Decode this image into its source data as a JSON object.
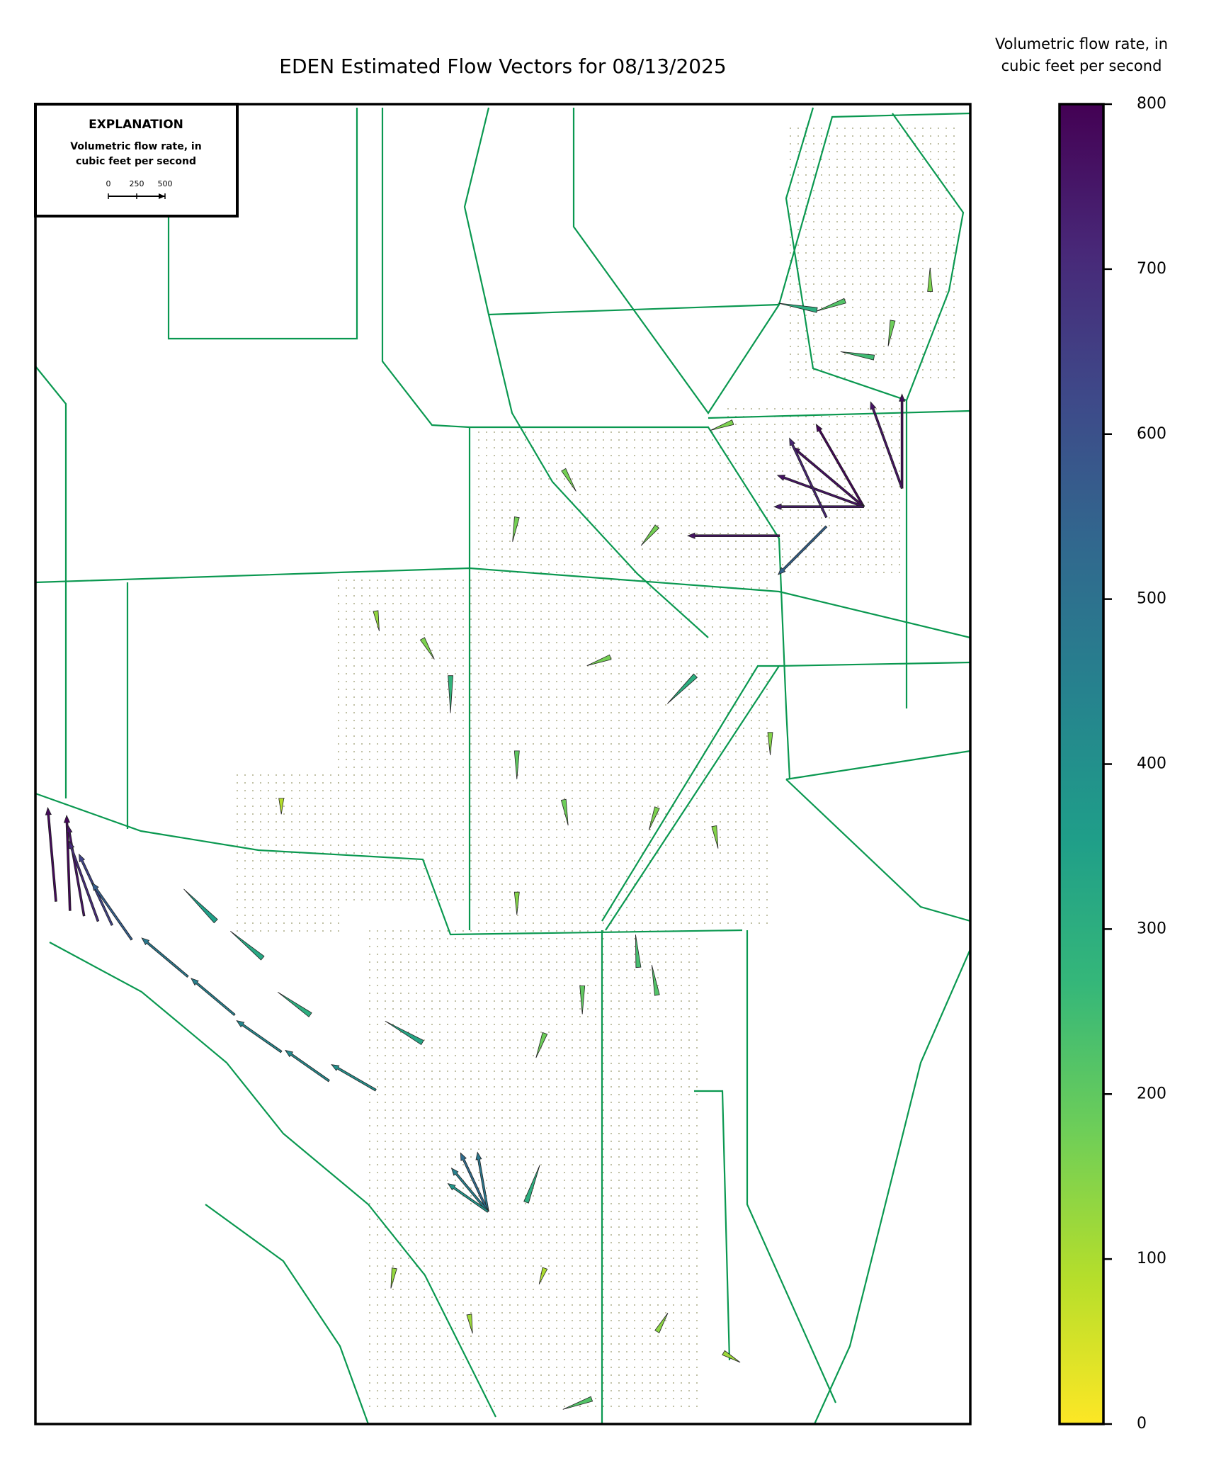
{
  "map": {
    "title": "EDEN Estimated Flow Vectors for 08/13/2025",
    "explanation": {
      "title": "EXPLANATION",
      "lines": [
        "Volumetric flow rate, in",
        "cubic feet per second"
      ],
      "scale_ticks": [
        0,
        250,
        500
      ]
    },
    "colorbar": {
      "lines": [
        "Volumetric flow rate, in",
        "cubic feet per second"
      ],
      "lim": [
        0,
        800
      ],
      "ticks": [
        0,
        100,
        200,
        300,
        400,
        500,
        600,
        700,
        800
      ],
      "colors": [
        "#fde725",
        "#b5de2b",
        "#6ece58",
        "#35b779",
        "#1f9e89",
        "#26828e",
        "#31688e",
        "#3e4989",
        "#482878",
        "#440154"
      ]
    },
    "vectors": [
      [
        0.022,
        0.604,
        95,
        780
      ],
      [
        0.037,
        0.611,
        92,
        790
      ],
      [
        0.052,
        0.615,
        100,
        760
      ],
      [
        0.067,
        0.619,
        110,
        700
      ],
      [
        0.082,
        0.622,
        115,
        640
      ],
      [
        0.103,
        0.633,
        125,
        560
      ],
      [
        0.163,
        0.661,
        140,
        480
      ],
      [
        0.213,
        0.69,
        140,
        450
      ],
      [
        0.263,
        0.718,
        145,
        430
      ],
      [
        0.314,
        0.74,
        145,
        420
      ],
      [
        0.364,
        0.747,
        150,
        400
      ],
      [
        0.414,
        0.711,
        150,
        330
      ],
      [
        0.294,
        0.69,
        145,
        300
      ],
      [
        0.243,
        0.647,
        140,
        320
      ],
      [
        0.193,
        0.619,
        135,
        350
      ],
      [
        0.484,
        0.839,
        100,
        480
      ],
      [
        0.484,
        0.839,
        115,
        520
      ],
      [
        0.484,
        0.839,
        130,
        450
      ],
      [
        0.484,
        0.839,
        145,
        380
      ],
      [
        0.525,
        0.832,
        70,
        300
      ],
      [
        0.886,
        0.305,
        120,
        790
      ],
      [
        0.886,
        0.305,
        140,
        770
      ],
      [
        0.886,
        0.305,
        160,
        760
      ],
      [
        0.886,
        0.305,
        180,
        740
      ],
      [
        0.927,
        0.291,
        90,
        780
      ],
      [
        0.927,
        0.291,
        110,
        760
      ],
      [
        0.846,
        0.313,
        115,
        720
      ],
      [
        0.796,
        0.327,
        180,
        760
      ],
      [
        0.846,
        0.32,
        225,
        550
      ],
      [
        0.706,
        0.433,
        225,
        300
      ],
      [
        0.444,
        0.433,
        270,
        280
      ],
      [
        0.515,
        0.49,
        270,
        200
      ],
      [
        0.565,
        0.527,
        280,
        180
      ],
      [
        0.665,
        0.533,
        250,
        160
      ],
      [
        0.615,
        0.419,
        200,
        170
      ],
      [
        0.414,
        0.405,
        300,
        160
      ],
      [
        0.364,
        0.384,
        280,
        130
      ],
      [
        0.263,
        0.526,
        270,
        90
      ],
      [
        0.665,
        0.675,
        100,
        220
      ],
      [
        0.645,
        0.654,
        95,
        240
      ],
      [
        0.585,
        0.668,
        270,
        200
      ],
      [
        0.545,
        0.704,
        250,
        180
      ],
      [
        0.515,
        0.597,
        270,
        150
      ],
      [
        0.565,
        0.277,
        300,
        170
      ],
      [
        0.515,
        0.313,
        260,
        170
      ],
      [
        0.665,
        0.32,
        230,
        170
      ],
      [
        0.746,
        0.241,
        200,
        160
      ],
      [
        0.866,
        0.149,
        200,
        220
      ],
      [
        0.917,
        0.164,
        260,
        180
      ],
      [
        0.957,
        0.142,
        90,
        160
      ],
      [
        0.836,
        0.156,
        170,
        300
      ],
      [
        0.897,
        0.192,
        170,
        250
      ],
      [
        0.464,
        0.917,
        280,
        120
      ],
      [
        0.595,
        0.981,
        200,
        220
      ],
      [
        0.665,
        0.93,
        60,
        140
      ],
      [
        0.736,
        0.946,
        330,
        120
      ],
      [
        0.384,
        0.882,
        260,
        130
      ],
      [
        0.545,
        0.882,
        250,
        100
      ],
      [
        0.726,
        0.547,
        280,
        150
      ],
      [
        0.786,
        0.476,
        270,
        150
      ]
    ]
  }
}
